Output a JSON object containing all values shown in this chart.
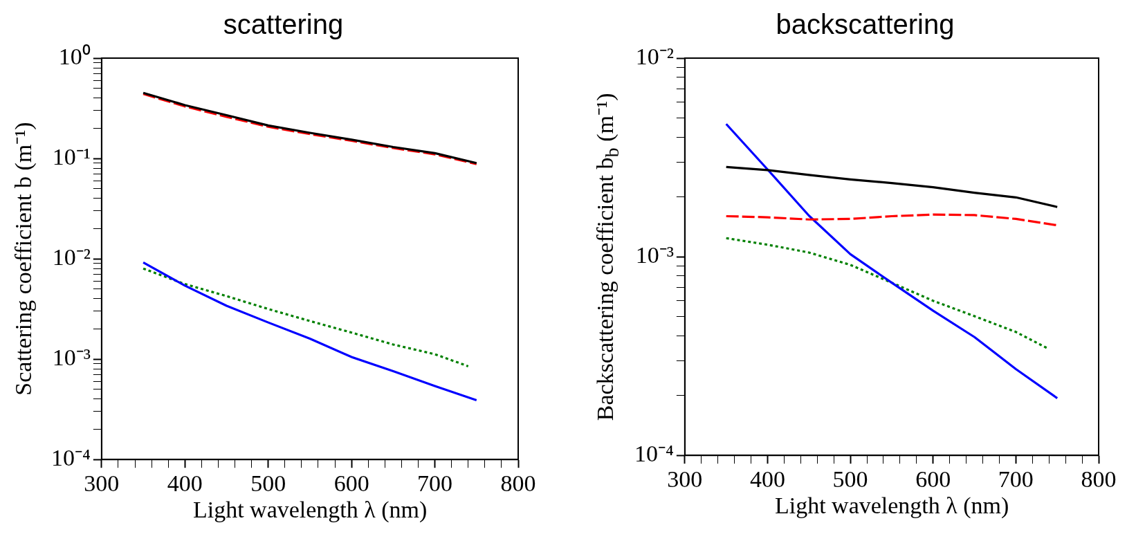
{
  "chart_data": [
    {
      "type": "line",
      "title": "scattering",
      "xlabel": "Light wavelength λ (nm)",
      "ylabel": "Scattering coefficient b (m⁻¹)",
      "x": [
        350,
        400,
        450,
        500,
        550,
        600,
        650,
        700,
        750
      ],
      "series": [
        {
          "color": "#000000",
          "line_style": "solid",
          "values": [
            0.451,
            0.34,
            0.27,
            0.213,
            0.18,
            0.154,
            0.13,
            0.113,
            0.09
          ]
        },
        {
          "color": "#ff0000",
          "line_style": "dashed",
          "values": [
            0.44,
            0.33,
            0.26,
            0.207,
            0.175,
            0.15,
            0.127,
            0.11,
            0.088
          ]
        },
        {
          "color": "#0000ff",
          "line_style": "solid",
          "values": [
            0.0092,
            0.0054,
            0.0034,
            0.00232,
            0.0016,
            0.00105,
            0.00076,
            0.00054,
            0.00039
          ]
        },
        {
          "color": "#008000",
          "line_style": "dotted",
          "x": [
            350,
            400,
            450,
            500,
            550,
            600,
            650,
            700,
            740
          ],
          "values": [
            0.008,
            0.0056,
            0.00425,
            0.00316,
            0.0024,
            0.00184,
            0.0014,
            0.00112,
            0.00085
          ]
        }
      ],
      "log": "y",
      "grid": false,
      "legend": false,
      "marker": "none",
      "xlim": [
        300,
        800
      ],
      "xticks": [
        300,
        {
          "value": 320,
          "label": null
        },
        {
          "value": 340,
          "label": null
        },
        {
          "value": 360,
          "label": null
        },
        {
          "value": 380,
          "label": null
        },
        400,
        {
          "value": 420,
          "label": null
        },
        {
          "value": 440,
          "label": null
        },
        {
          "value": 460,
          "label": null
        },
        {
          "value": 480,
          "label": null
        },
        500,
        {
          "value": 520,
          "label": null
        },
        {
          "value": 540,
          "label": null
        },
        {
          "value": 560,
          "label": null
        },
        {
          "value": 580,
          "label": null
        },
        600,
        {
          "value": 620,
          "label": null
        },
        {
          "value": 640,
          "label": null
        },
        {
          "value": 660,
          "label": null
        },
        {
          "value": 680,
          "label": null
        },
        700,
        {
          "value": 720,
          "label": null
        },
        {
          "value": 740,
          "label": null
        },
        {
          "value": 760,
          "label": null
        },
        {
          "value": 780,
          "label": null
        },
        800
      ],
      "ylim": [
        0.0001,
        1
      ],
      "yticks": [
        {
          "value": 0.0001,
          "label": "10⁻⁴"
        },
        {
          "value": 0.0002,
          "label": null
        },
        {
          "value": 0.0003,
          "label": null
        },
        {
          "value": 0.0004,
          "label": null
        },
        {
          "value": 0.0005,
          "label": null
        },
        {
          "value": 0.0006,
          "label": null
        },
        {
          "value": 0.0007,
          "label": null
        },
        {
          "value": 0.0008,
          "label": null
        },
        {
          "value": 0.0009,
          "label": null
        },
        {
          "value": 0.001,
          "label": "10⁻³"
        },
        {
          "value": 0.002,
          "label": null
        },
        {
          "value": 0.003,
          "label": null
        },
        {
          "value": 0.004,
          "label": null
        },
        {
          "value": 0.005,
          "label": null
        },
        {
          "value": 0.006,
          "label": null
        },
        {
          "value": 0.007,
          "label": null
        },
        {
          "value": 0.008,
          "label": null
        },
        {
          "value": 0.009,
          "label": null
        },
        {
          "value": 0.01,
          "label": "10⁻²"
        },
        {
          "value": 0.02,
          "label": null
        },
        {
          "value": 0.03,
          "label": null
        },
        {
          "value": 0.04,
          "label": null
        },
        {
          "value": 0.05,
          "label": null
        },
        {
          "value": 0.06,
          "label": null
        },
        {
          "value": 0.07,
          "label": null
        },
        {
          "value": 0.08,
          "label": null
        },
        {
          "value": 0.09,
          "label": null
        },
        {
          "value": 0.1,
          "label": "10⁻¹"
        },
        {
          "value": 0.2,
          "label": null
        },
        {
          "value": 0.3,
          "label": null
        },
        {
          "value": 0.4,
          "label": null
        },
        {
          "value": 0.5,
          "label": null
        },
        {
          "value": 0.6,
          "label": null
        },
        {
          "value": 0.7,
          "label": null
        },
        {
          "value": 0.8,
          "label": null
        },
        {
          "value": 0.9,
          "label": null
        },
        {
          "value": 1,
          "label": "10⁰"
        }
      ]
    },
    {
      "type": "line",
      "title": "backscattering",
      "xlabel": "Light wavelength λ (nm)",
      "ylabel": "Backscattering coefficient b$_{b}$ (m⁻¹)",
      "x": [
        350,
        400,
        450,
        500,
        550,
        600,
        650,
        700,
        750
      ],
      "series": [
        {
          "color": "#000000",
          "line_style": "solid",
          "values": [
            0.00283,
            0.00273,
            0.00258,
            0.00245,
            0.00235,
            0.00224,
            0.0021,
            0.00199,
            0.00178
          ]
        },
        {
          "color": "#ff0000",
          "line_style": "dashed",
          "values": [
            0.0016,
            0.00158,
            0.00154,
            0.00155,
            0.0016,
            0.00163,
            0.00162,
            0.00155,
            0.00144
          ]
        },
        {
          "color": "#0000ff",
          "line_style": "solid",
          "values": [
            0.00466,
            0.00275,
            0.00161,
            0.00103,
            0.00074,
            0.000535,
            0.000394,
            0.000272,
            0.000194
          ]
        },
        {
          "color": "#008000",
          "line_style": "dotted",
          "x": [
            350,
            400,
            450,
            500,
            550,
            600,
            650,
            700,
            740
          ],
          "values": [
            0.00124,
            0.00115,
            0.00105,
            0.00091,
            0.00074,
            0.0006,
            0.000502,
            0.000418,
            0.000343
          ]
        }
      ],
      "log": "y",
      "grid": false,
      "legend": false,
      "marker": "none",
      "xlim": [
        300,
        800
      ],
      "xticks": [
        300,
        {
          "value": 320,
          "label": null
        },
        {
          "value": 340,
          "label": null
        },
        {
          "value": 360,
          "label": null
        },
        {
          "value": 380,
          "label": null
        },
        400,
        {
          "value": 420,
          "label": null
        },
        {
          "value": 440,
          "label": null
        },
        {
          "value": 460,
          "label": null
        },
        {
          "value": 480,
          "label": null
        },
        500,
        {
          "value": 520,
          "label": null
        },
        {
          "value": 540,
          "label": null
        },
        {
          "value": 560,
          "label": null
        },
        {
          "value": 580,
          "label": null
        },
        600,
        {
          "value": 620,
          "label": null
        },
        {
          "value": 640,
          "label": null
        },
        {
          "value": 660,
          "label": null
        },
        {
          "value": 680,
          "label": null
        },
        700,
        {
          "value": 720,
          "label": null
        },
        {
          "value": 740,
          "label": null
        },
        {
          "value": 760,
          "label": null
        },
        {
          "value": 780,
          "label": null
        },
        800
      ],
      "ylim": [
        0.0001,
        0.01
      ],
      "yticks": [
        {
          "value": 0.0001,
          "label": "10⁻⁴"
        },
        {
          "value": 0.0002,
          "label": null
        },
        {
          "value": 0.0003,
          "label": null
        },
        {
          "value": 0.0004,
          "label": null
        },
        {
          "value": 0.0005,
          "label": null
        },
        {
          "value": 0.0006,
          "label": null
        },
        {
          "value": 0.0007,
          "label": null
        },
        {
          "value": 0.0008,
          "label": null
        },
        {
          "value": 0.0009,
          "label": null
        },
        {
          "value": 0.001,
          "label": "10⁻³"
        },
        {
          "value": 0.002,
          "label": null
        },
        {
          "value": 0.003,
          "label": null
        },
        {
          "value": 0.004,
          "label": null
        },
        {
          "value": 0.005,
          "label": null
        },
        {
          "value": 0.006,
          "label": null
        },
        {
          "value": 0.007,
          "label": null
        },
        {
          "value": 0.008,
          "label": null
        },
        {
          "value": 0.009,
          "label": null
        },
        {
          "value": 0.01,
          "label": "10⁻²"
        }
      ]
    }
  ]
}
